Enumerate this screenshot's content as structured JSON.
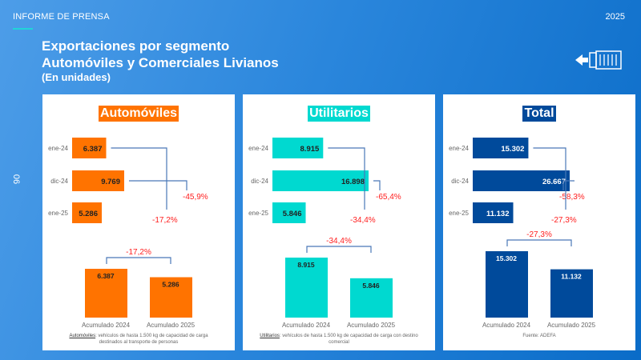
{
  "header": {
    "label": "INFORME DE PRENSA",
    "year": "2025",
    "page": "06",
    "title_line1": "Exportaciones por segmento",
    "title_line2": "Automóviles y Comerciales Livianos",
    "subtitle": "(En unidades)"
  },
  "icon": "container-export-arrow-icon",
  "chart_data": [
    {
      "type": "bar",
      "orientation": "horizontal",
      "title": "Automóviles",
      "color": "#ff7300",
      "categories": [
        "ene-24",
        "dic-24",
        "ene-25"
      ],
      "values": [
        6387,
        9769,
        5286
      ],
      "value_labels": [
        "6.387",
        "9.769",
        "5.286"
      ],
      "changes": {
        "dic-24_to_ene-25": "-45,9%",
        "ene-24_to_ene-25": "-17,2%"
      },
      "cumulative": {
        "type": "bar",
        "categories": [
          "Acumulado 2024",
          "Acumulado 2025"
        ],
        "values": [
          6387,
          5286
        ],
        "value_labels": [
          "6.387",
          "5.286"
        ],
        "change": "-17,2%"
      },
      "footnote_term": "Automóviles",
      "footnote": ": vehículos de hasta 1.500 kg de capacidad de carga destinados al transporte de personas"
    },
    {
      "type": "bar",
      "orientation": "horizontal",
      "title": "Utilitarios",
      "color": "#00d9d0",
      "categories": [
        "ene-24",
        "dic-24",
        "ene-25"
      ],
      "values": [
        8915,
        16898,
        5846
      ],
      "value_labels": [
        "8.915",
        "16.898",
        "5.846"
      ],
      "changes": {
        "dic-24_to_ene-25": "-65,4%",
        "ene-24_to_ene-25": "-34,4%"
      },
      "cumulative": {
        "type": "bar",
        "categories": [
          "Acumulado 2024",
          "Acumulado 2025"
        ],
        "values": [
          8915,
          5846
        ],
        "value_labels": [
          "8.915",
          "5.846"
        ],
        "change": "-34,4%"
      },
      "footnote_term": "Utilitarios",
      "footnote": ": vehículos de hasta 1.500 kg de capacidad de carga con destino comercial"
    },
    {
      "type": "bar",
      "orientation": "horizontal",
      "title": "Total",
      "color": "#004a9b",
      "categories": [
        "ene-24",
        "dic-24",
        "ene-25"
      ],
      "values": [
        15302,
        26667,
        11132
      ],
      "value_labels": [
        "15.302",
        "26.667",
        "11.132"
      ],
      "changes": {
        "dic-24_to_ene-25": "-58,3%",
        "ene-24_to_ene-25": "-27,3%"
      },
      "cumulative": {
        "type": "bar",
        "categories": [
          "Acumulado 2024",
          "Acumulado 2025"
        ],
        "values": [
          15302,
          11132
        ],
        "value_labels": [
          "15.302",
          "11.132"
        ],
        "change": "-27,3%"
      },
      "footnote_term": "",
      "footnote": "Fuente: ADEFA"
    }
  ]
}
